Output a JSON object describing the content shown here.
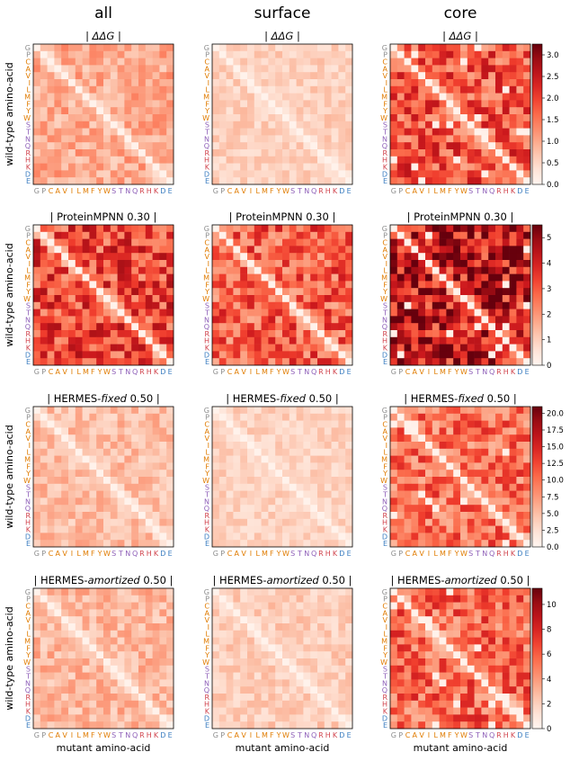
{
  "columns": [
    "all",
    "surface",
    "core"
  ],
  "amino_acids": [
    "G",
    "P",
    "C",
    "A",
    "V",
    "I",
    "L",
    "M",
    "F",
    "Y",
    "W",
    "S",
    "T",
    "N",
    "Q",
    "R",
    "H",
    "K",
    "D",
    "E"
  ],
  "amino_acid_colors": {
    "G": "#8c8c8c",
    "P": "#8c8c8c",
    "C": "#e07b00",
    "A": "#e07b00",
    "V": "#e07b00",
    "I": "#e07b00",
    "L": "#e07b00",
    "M": "#e07b00",
    "F": "#e07b00",
    "Y": "#e07b00",
    "W": "#e07b00",
    "S": "#8e5fb8",
    "T": "#8e5fb8",
    "N": "#8e5fb8",
    "Q": "#8e5fb8",
    "R": "#d0434c",
    "H": "#d0434c",
    "K": "#d0434c",
    "D": "#3a7cc0",
    "E": "#3a7cc0"
  },
  "ylabel": "wild-type amino-acid",
  "xlabel": "mutant amino-acid",
  "colormap": "Reds",
  "chart_data": [
    {
      "type": "heatmap",
      "row_title": "| ΔΔG |",
      "row_title_parts": [
        [
          "| ",
          false
        ],
        [
          "ΔΔG",
          true
        ],
        [
          " |",
          false
        ]
      ],
      "colorbar": {
        "vmin": 0,
        "vmax": 3.25,
        "ticks": [
          "0.0",
          "0.5",
          "1.0",
          "1.5",
          "2.0",
          "2.5",
          "3.0"
        ],
        "tick_values": [
          0,
          0.5,
          1.0,
          1.5,
          2.0,
          2.5,
          3.0
        ]
      },
      "panels": [
        {
          "column": "all",
          "mean_level": 0.3
        },
        {
          "column": "surface",
          "mean_level": 0.18
        },
        {
          "column": "core",
          "mean_level": 0.55
        }
      ]
    },
    {
      "type": "heatmap",
      "row_title": "| ProteinMPNN 0.30 |",
      "row_title_parts": [
        [
          "| ProteinMPNN 0.30 |",
          false
        ]
      ],
      "colorbar": {
        "vmin": 0,
        "vmax": 5.5,
        "ticks": [
          "0",
          "1",
          "2",
          "3",
          "4",
          "5"
        ],
        "tick_values": [
          0,
          1,
          2,
          3,
          4,
          5
        ]
      },
      "panels": [
        {
          "column": "all",
          "mean_level": 0.6
        },
        {
          "column": "surface",
          "mean_level": 0.52
        },
        {
          "column": "core",
          "mean_level": 0.78
        }
      ]
    },
    {
      "type": "heatmap",
      "row_title": "| HERMES-fixed 0.50 |",
      "row_title_parts": [
        [
          "| HERMES-",
          false
        ],
        [
          "fixed",
          true
        ],
        [
          " 0.50 |",
          false
        ]
      ],
      "colorbar": {
        "vmin": 0,
        "vmax": 21,
        "ticks": [
          "0.0",
          "2.5",
          "5.0",
          "7.5",
          "10.0",
          "12.5",
          "15.0",
          "17.5",
          "20.0"
        ],
        "tick_values": [
          0,
          2.5,
          5,
          7.5,
          10,
          12.5,
          15,
          17.5,
          20
        ]
      },
      "panels": [
        {
          "column": "all",
          "mean_level": 0.24
        },
        {
          "column": "surface",
          "mean_level": 0.17
        },
        {
          "column": "core",
          "mean_level": 0.48
        }
      ]
    },
    {
      "type": "heatmap",
      "row_title": "| HERMES-amortized 0.50 |",
      "row_title_parts": [
        [
          "| HERMES-",
          false
        ],
        [
          "amortized",
          true
        ],
        [
          " 0.50 |",
          false
        ]
      ],
      "colorbar": {
        "vmin": 0,
        "vmax": 11.3,
        "ticks": [
          "0",
          "2",
          "4",
          "6",
          "8",
          "10"
        ],
        "tick_values": [
          0,
          2,
          4,
          6,
          8,
          10
        ]
      },
      "panels": [
        {
          "column": "all",
          "mean_level": 0.26
        },
        {
          "column": "surface",
          "mean_level": 0.19
        },
        {
          "column": "core",
          "mean_level": 0.5
        }
      ]
    }
  ]
}
